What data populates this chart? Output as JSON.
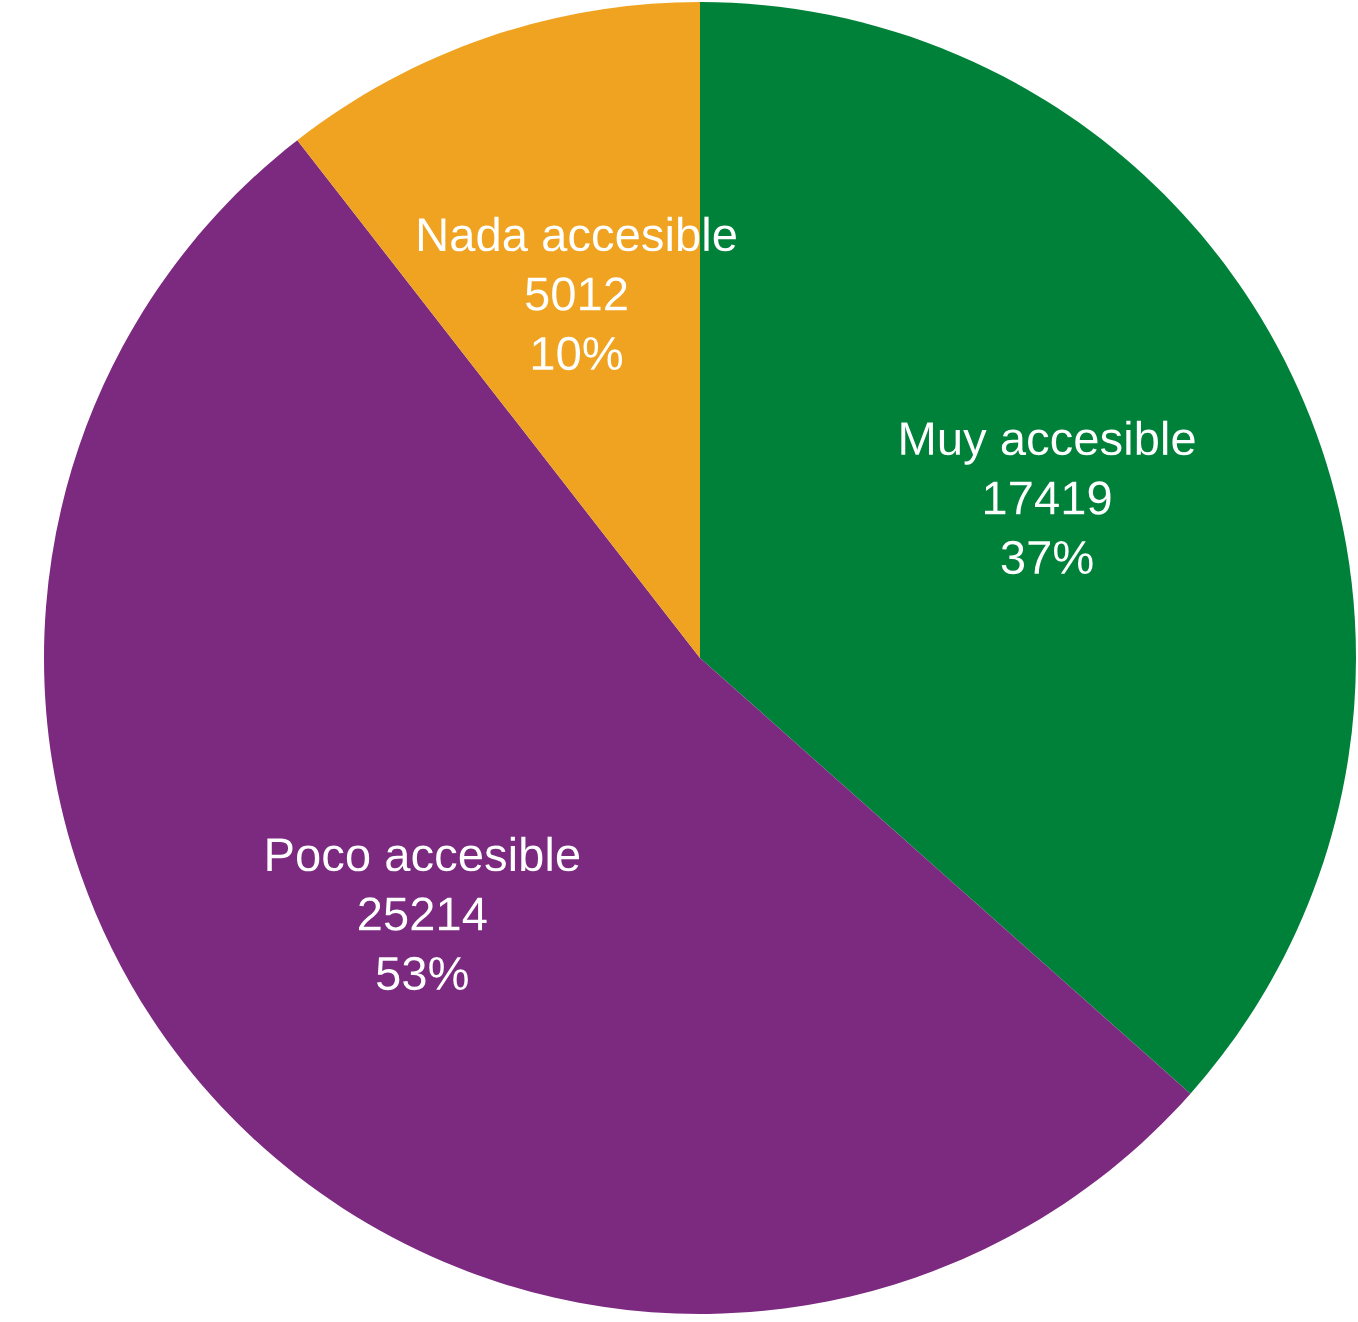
{
  "chart_data": {
    "type": "pie",
    "categories": [
      "Muy accesible",
      "Poco accesible",
      "Nada accesible"
    ],
    "values": [
      17419,
      25214,
      5012
    ],
    "colors": [
      "#00813a",
      "#7b2a80",
      "#f0a321"
    ],
    "value_labels": [
      "17419\n37%",
      "25214\n53%",
      "5012\n10%"
    ],
    "legend": false
  }
}
